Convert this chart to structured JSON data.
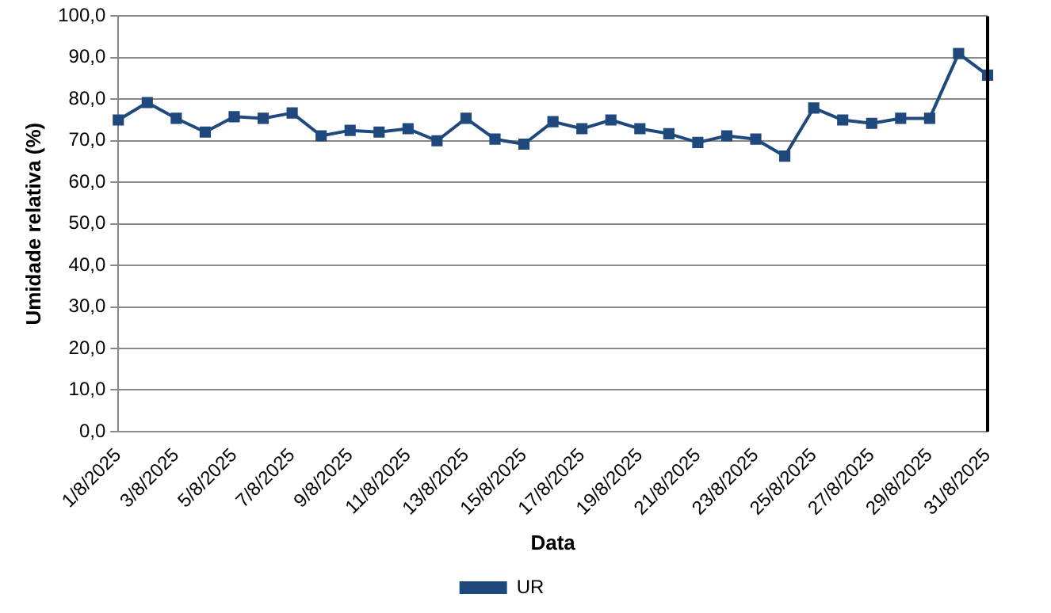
{
  "chart_data": {
    "type": "line",
    "xlabel": "Data",
    "ylabel": "Umidade relativa (%)",
    "categories": [
      "1/8/2025",
      null,
      "3/8/2025",
      null,
      "5/8/2025",
      null,
      "7/8/2025",
      null,
      "9/8/2025",
      null,
      "11/8/2025",
      null,
      "13/8/2025",
      null,
      "15/8/2025",
      null,
      "17/8/2025",
      null,
      "19/8/2025",
      null,
      "21/8/2025",
      null,
      "23/8/2025",
      null,
      "25/8/2025",
      null,
      "27/8/2025",
      null,
      "29/8/2025",
      null,
      "31/8/2025"
    ],
    "series": [
      {
        "name": "UR",
        "color": "#1f497d",
        "values": [
          75.0,
          79.2,
          75.4,
          72.1,
          75.8,
          75.4,
          76.7,
          71.2,
          72.5,
          72.1,
          72.9,
          70.0,
          75.4,
          70.4,
          69.2,
          74.6,
          72.9,
          75.0,
          72.9,
          71.7,
          69.6,
          71.2,
          70.4,
          66.3,
          77.9,
          75.0,
          74.2,
          75.4,
          75.4,
          91.0,
          85.8
        ]
      }
    ],
    "ylim": [
      0,
      100
    ],
    "yticks": [
      {
        "value": 0,
        "label": "0,0"
      },
      {
        "value": 10,
        "label": "10,0"
      },
      {
        "value": 20,
        "label": "20,0"
      },
      {
        "value": 30,
        "label": "30,0"
      },
      {
        "value": 40,
        "label": "40,0"
      },
      {
        "value": 50,
        "label": "50,0"
      },
      {
        "value": 60,
        "label": "60,0"
      },
      {
        "value": 70,
        "label": "70,0"
      },
      {
        "value": 80,
        "label": "80,0"
      },
      {
        "value": 90,
        "label": "90,0"
      },
      {
        "value": 100,
        "label": "100,0"
      }
    ],
    "grid": "y",
    "legend": "bottom",
    "marker": "square",
    "line_style": "solid"
  }
}
